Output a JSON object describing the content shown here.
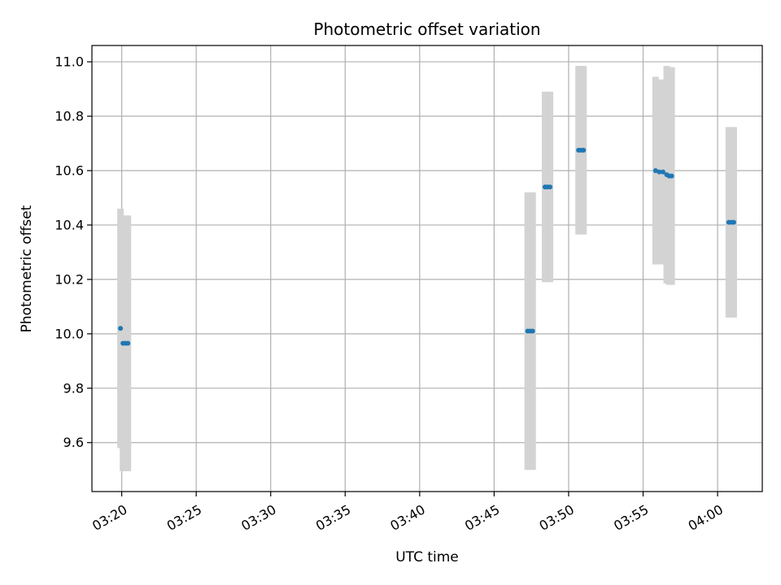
{
  "chart_data": {
    "type": "scatter",
    "title": "Photometric offset variation",
    "xlabel": "UTC time",
    "ylabel": "Photometric offset",
    "x_unit": "UTC time (HH:MM)",
    "xlim": [
      "03:18",
      "04:03"
    ],
    "ylim": [
      9.42,
      11.06
    ],
    "x_ticks": [
      "03:20",
      "03:25",
      "03:30",
      "03:35",
      "03:40",
      "03:45",
      "03:50",
      "03:55",
      "04:00"
    ],
    "y_ticks": [
      "9.6",
      "9.8",
      "10.0",
      "10.2",
      "10.4",
      "10.6",
      "10.8",
      "11.0"
    ],
    "grid": true,
    "colors": {
      "points": "#1f77b4",
      "error_bars": "#d3d3d3",
      "grid": "#b0b0b0"
    },
    "points": [
      {
        "t": "03:19:55",
        "y": 10.02,
        "err": 0.44
      },
      {
        "t": "03:20:05",
        "y": 9.965,
        "err": 0.47
      },
      {
        "t": "03:20:15",
        "y": 9.965,
        "err": 0.47
      },
      {
        "t": "03:20:25",
        "y": 9.965,
        "err": 0.47
      },
      {
        "t": "03:47:15",
        "y": 10.01,
        "err": 0.51
      },
      {
        "t": "03:47:25",
        "y": 10.01,
        "err": 0.51
      },
      {
        "t": "03:47:35",
        "y": 10.01,
        "err": 0.51
      },
      {
        "t": "03:48:25",
        "y": 10.54,
        "err": 0.35
      },
      {
        "t": "03:48:35",
        "y": 10.54,
        "err": 0.35
      },
      {
        "t": "03:48:45",
        "y": 10.54,
        "err": 0.35
      },
      {
        "t": "03:50:40",
        "y": 10.675,
        "err": 0.31
      },
      {
        "t": "03:50:50",
        "y": 10.675,
        "err": 0.31
      },
      {
        "t": "03:51:00",
        "y": 10.675,
        "err": 0.31
      },
      {
        "t": "03:55:50",
        "y": 10.6,
        "err": 0.345
      },
      {
        "t": "03:56:05",
        "y": 10.595,
        "err": 0.34
      },
      {
        "t": "03:56:20",
        "y": 10.595,
        "err": 0.34
      },
      {
        "t": "03:56:35",
        "y": 10.585,
        "err": 0.4
      },
      {
        "t": "03:56:45",
        "y": 10.58,
        "err": 0.4
      },
      {
        "t": "03:56:55",
        "y": 10.58,
        "err": 0.4
      },
      {
        "t": "04:00:45",
        "y": 10.41,
        "err": 0.35
      },
      {
        "t": "04:00:55",
        "y": 10.41,
        "err": 0.35
      },
      {
        "t": "04:01:05",
        "y": 10.41,
        "err": 0.35
      }
    ]
  }
}
